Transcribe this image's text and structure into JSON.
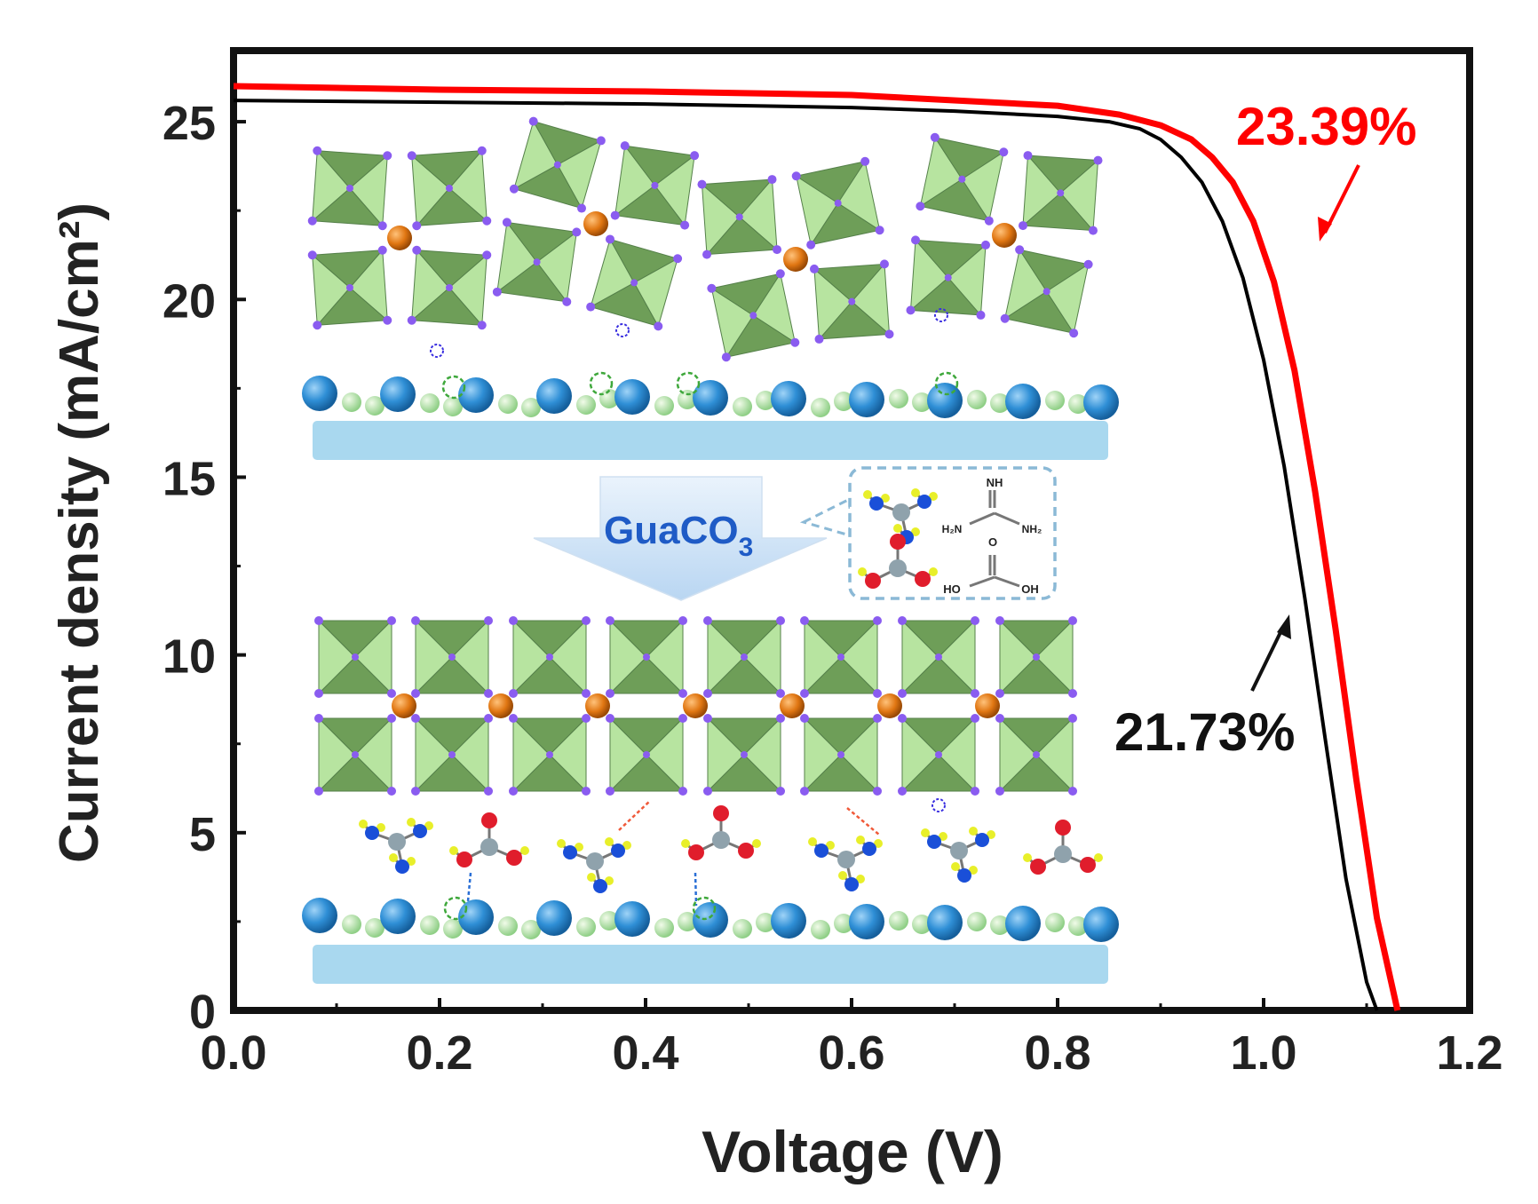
{
  "chart_data": {
    "type": "line",
    "xlabel": "Voltage (V)",
    "ylabel": "Current density (mA/cm²)",
    "xlim": [
      0.0,
      1.2
    ],
    "ylim": [
      0,
      27
    ],
    "x_ticks": [
      "0.0",
      "0.2",
      "0.4",
      "0.6",
      "0.8",
      "1.0",
      "1.2"
    ],
    "y_ticks": [
      "0",
      "5",
      "10",
      "15",
      "20",
      "25"
    ],
    "x_tick_values": [
      0.0,
      0.2,
      0.4,
      0.6,
      0.8,
      1.0,
      1.2
    ],
    "y_tick_values": [
      0,
      5,
      10,
      15,
      20,
      25
    ],
    "grid": false,
    "series": [
      {
        "color": "#000000",
        "x": [
          0.0,
          0.2,
          0.4,
          0.6,
          0.7,
          0.8,
          0.85,
          0.88,
          0.9,
          0.92,
          0.94,
          0.96,
          0.98,
          1.0,
          1.02,
          1.04,
          1.06,
          1.08,
          1.1,
          1.11
        ],
        "y": [
          25.6,
          25.55,
          25.5,
          25.4,
          25.3,
          25.15,
          25.0,
          24.8,
          24.5,
          24.0,
          23.3,
          22.2,
          20.6,
          18.3,
          15.3,
          11.6,
          7.6,
          3.7,
          0.8,
          0.0
        ]
      },
      {
        "color": "#ff0000",
        "x": [
          0.0,
          0.2,
          0.4,
          0.6,
          0.8,
          0.86,
          0.9,
          0.93,
          0.95,
          0.97,
          0.99,
          1.01,
          1.03,
          1.05,
          1.07,
          1.09,
          1.11,
          1.13
        ],
        "y": [
          26.0,
          25.9,
          25.85,
          25.75,
          25.45,
          25.2,
          24.9,
          24.5,
          24.0,
          23.3,
          22.2,
          20.5,
          18.0,
          14.6,
          10.7,
          6.5,
          2.6,
          0.0
        ]
      }
    ],
    "annotations": [
      {
        "text": "23.39%",
        "color": "#ff0000",
        "arrow": "to red curve"
      },
      {
        "text": "21.73%",
        "color": "#000000",
        "arrow": "to black curve"
      }
    ]
  },
  "inset": {
    "label_main": "GuaCO",
    "label_sub": "3",
    "structure_labels": {
      "nh": "NH",
      "h2n": "H₂N",
      "nh2": "NH₂",
      "o": "O",
      "ho": "HO",
      "oh": "OH"
    },
    "colors": {
      "octahedron_light": "#b7e4a0",
      "octahedron_dark": "#6e9e58",
      "corner_atom": "#8a5cf0",
      "cation": "#e07612",
      "substrate": "#a9d8ef",
      "big_sphere": "#2f8fd6",
      "small_sphere": "#b8e3ad",
      "arrow_fill": "#cfe3f7",
      "molecule_box": "#8bb9d6",
      "nitrogen": "#1a4fd8",
      "carbon": "#8fa2ac",
      "oxygen": "#e01d2c",
      "hydrogen": "#e8ef2a"
    }
  }
}
